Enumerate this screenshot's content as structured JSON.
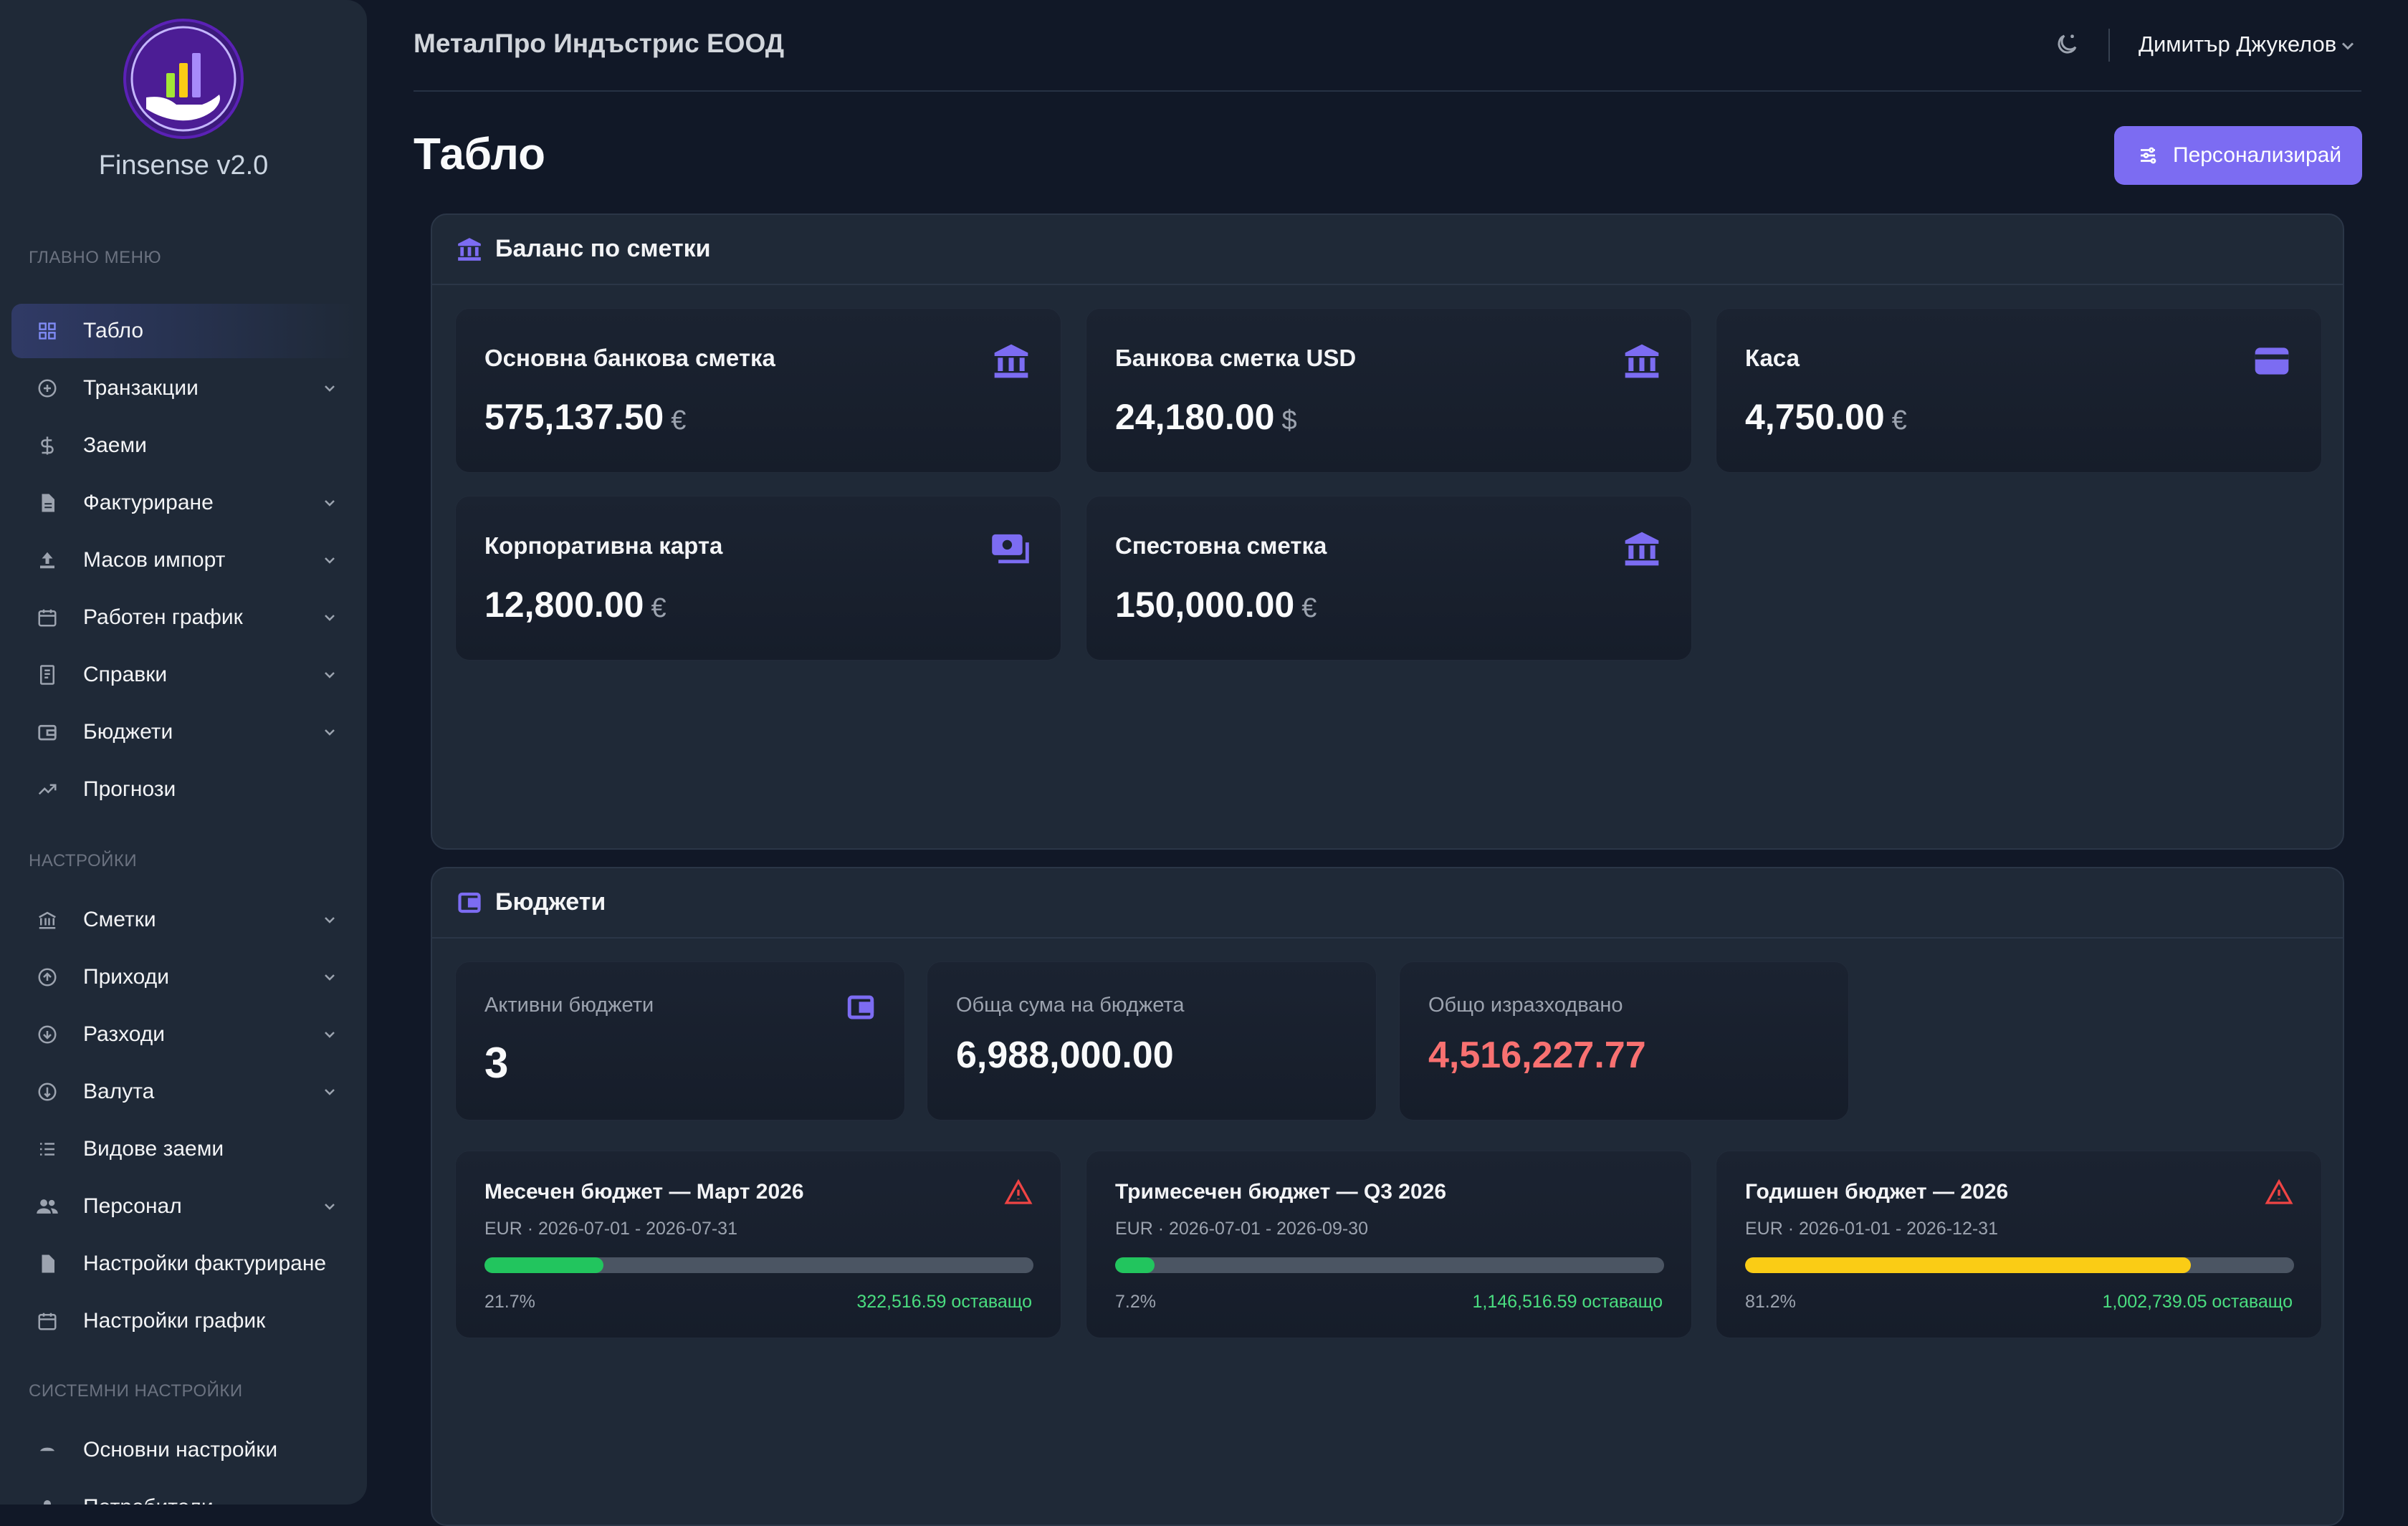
{
  "app": {
    "name": "Finsense v2.0",
    "company": "МеталПро Индъстрис ЕООД",
    "user": "Димитър Джукелов",
    "page_title": "Табло",
    "customize_label": "Персонализирай",
    "accent_color": "#7c6cf2"
  },
  "sidebar": {
    "sections": {
      "main": "ГЛАВНО МЕНЮ",
      "settings": "НАСТРОЙКИ",
      "system": "СИСТЕМНИ НАСТРОЙКИ"
    },
    "main_items": [
      {
        "label": "Табло",
        "icon": "grid-icon",
        "active": true,
        "expandable": false
      },
      {
        "label": "Транзакции",
        "icon": "plus-circle-icon",
        "expandable": true
      },
      {
        "label": "Заеми",
        "icon": "dollar-icon",
        "expandable": false
      },
      {
        "label": "Фактуриране",
        "icon": "document-icon",
        "expandable": true
      },
      {
        "label": "Масов импорт",
        "icon": "upload-icon",
        "expandable": true
      },
      {
        "label": "Работен график",
        "icon": "calendar-icon",
        "expandable": true
      },
      {
        "label": "Справки",
        "icon": "report-icon",
        "expandable": true
      },
      {
        "label": "Бюджети",
        "icon": "wallet-icon",
        "expandable": true
      },
      {
        "label": "Прогнози",
        "icon": "trend-icon",
        "expandable": false
      }
    ],
    "settings_items": [
      {
        "label": "Сметки",
        "icon": "bank-icon",
        "expandable": true
      },
      {
        "label": "Приходи",
        "icon": "arrow-up-circle-icon",
        "expandable": true
      },
      {
        "label": "Разходи",
        "icon": "arrow-down-circle-icon",
        "expandable": true
      },
      {
        "label": "Валута",
        "icon": "currency-icon",
        "expandable": true
      },
      {
        "label": "Видове заеми",
        "icon": "list-icon",
        "expandable": false
      },
      {
        "label": "Персонал",
        "icon": "users-icon",
        "expandable": true
      },
      {
        "label": "Настройки фактуриране",
        "icon": "document-icon",
        "expandable": false
      },
      {
        "label": "Настройки график",
        "icon": "calendar-icon",
        "expandable": false
      }
    ],
    "system_items": [
      {
        "label": "Основни настройки",
        "icon": "cloud-icon",
        "expandable": false
      },
      {
        "label": "Потребители",
        "icon": "user-icon",
        "expandable": false
      }
    ]
  },
  "balance_panel": {
    "title": "Баланс по сметки",
    "accounts": [
      {
        "name": "Основна банкова сметка",
        "amount": "575,137.50",
        "currency": "€",
        "icon": "bank-icon"
      },
      {
        "name": "Банкова сметка USD",
        "amount": "24,180.00",
        "currency": "$",
        "icon": "bank-icon"
      },
      {
        "name": "Каса",
        "amount": "4,750.00",
        "currency": "€",
        "icon": "wallet-icon"
      },
      {
        "name": "Корпоративна карта",
        "amount": "12,800.00",
        "currency": "€",
        "icon": "cash-icon"
      },
      {
        "name": "Спестовна сметка",
        "amount": "150,000.00",
        "currency": "€",
        "icon": "bank-icon"
      }
    ]
  },
  "budgets_panel": {
    "title": "Бюджети",
    "stats": [
      {
        "label": "Активни бюджети",
        "value": "3",
        "color": "#f9fafb"
      },
      {
        "label": "Обща сума на бюджета",
        "value": "6,988,000.00",
        "color": "#f9fafb"
      },
      {
        "label": "Общо изразходвано",
        "value": "4,516,227.77",
        "color": "#f87171"
      }
    ],
    "budgets": [
      {
        "name": "Месечен бюджет — Март 2026",
        "meta": "EUR · 2026-07-01 - 2026-07-31",
        "percent": 21.7,
        "percent_label": "21.7%",
        "remaining": "322,516.59 оставащо",
        "bar_color": "#22c55e",
        "warning": true
      },
      {
        "name": "Тримесечен бюджет — Q3 2026",
        "meta": "EUR · 2026-07-01 - 2026-09-30",
        "percent": 7.2,
        "percent_label": "7.2%",
        "remaining": "1,146,516.59 оставащо",
        "bar_color": "#22c55e",
        "warning": false
      },
      {
        "name": "Годишен бюджет — 2026",
        "meta": "EUR · 2026-01-01 - 2026-12-31",
        "percent": 81.2,
        "percent_label": "81.2%",
        "remaining": "1,002,739.05 оставащо",
        "bar_color": "#facc15",
        "warning": true
      }
    ]
  }
}
